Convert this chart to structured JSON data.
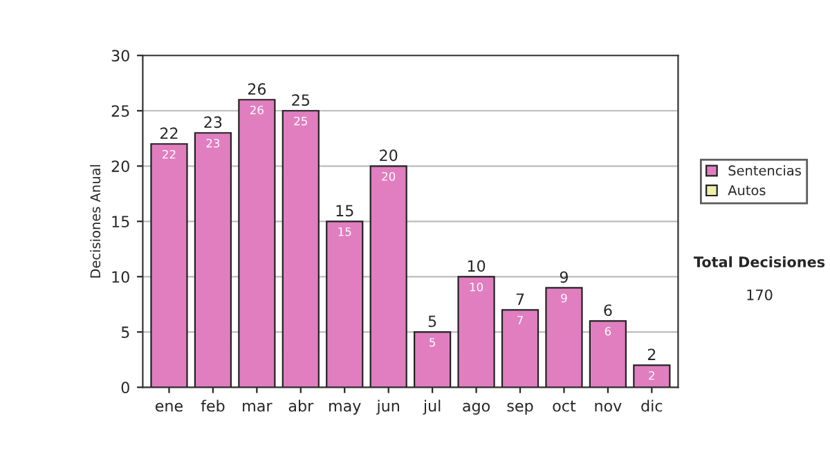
{
  "chart_data": {
    "type": "bar",
    "ylabel": "Decisiones Anual",
    "categories": [
      "ene",
      "feb",
      "mar",
      "abr",
      "may",
      "jun",
      "jul",
      "ago",
      "sep",
      "oct",
      "nov",
      "dic"
    ],
    "series": [
      {
        "name": "Sentencias",
        "color": "#e07ec0",
        "values": [
          22,
          23,
          26,
          25,
          15,
          20,
          5,
          10,
          7,
          9,
          6,
          2
        ],
        "value_labels": [
          "22",
          "23",
          "26",
          "25",
          "15",
          "20",
          "5",
          "10",
          "7",
          "9",
          "6",
          "2"
        ]
      },
      {
        "name": "Autos",
        "color": "#eef0a8",
        "values": [
          null,
          null,
          null,
          null,
          null,
          null,
          null,
          null,
          null,
          null,
          null,
          null
        ]
      }
    ],
    "ylim": [
      0,
      30
    ],
    "yticks": [
      0,
      5,
      10,
      15,
      20,
      25,
      30
    ],
    "grid": "y",
    "legend": "right",
    "annotations": [
      "Total Decisiones",
      "170",
      {
        "text": "22",
        "x": "ene",
        "y": 22
      },
      {
        "text": "23",
        "x": "feb",
        "y": 23
      },
      {
        "text": "26",
        "x": "mar",
        "y": 26
      },
      {
        "text": "25",
        "x": "abr",
        "y": 25
      },
      {
        "text": "15",
        "x": "may",
        "y": 15
      },
      {
        "text": "20",
        "x": "jun",
        "y": 20
      },
      {
        "text": "5",
        "x": "jul",
        "y": 5
      },
      {
        "text": "10",
        "x": "ago",
        "y": 10
      },
      {
        "text": "7",
        "x": "sep",
        "y": 7
      },
      {
        "text": "9",
        "x": "oct",
        "y": 9
      },
      {
        "text": "6",
        "x": "nov",
        "y": 6
      },
      {
        "text": "2",
        "x": "dic",
        "y": 2
      }
    ]
  }
}
